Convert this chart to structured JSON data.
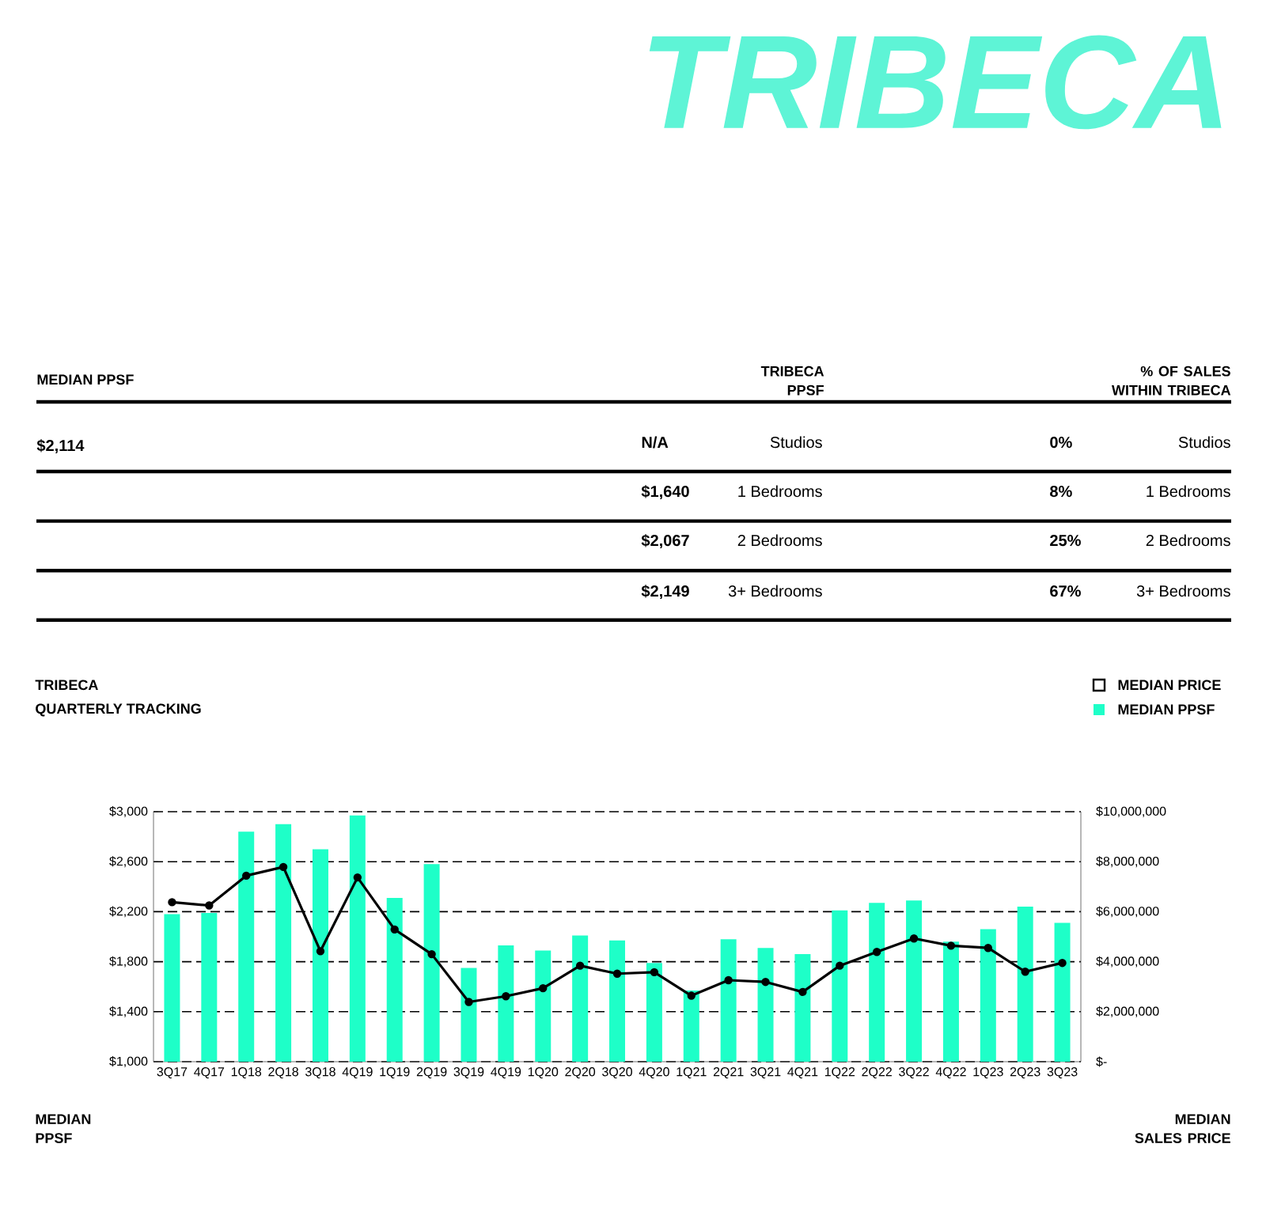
{
  "chart_data": [
    {
      "type": "other",
      "title": "TRIBECA",
      "annotations": [
        "MEDIAN PPSF",
        "TRIBECA PPSF",
        "% OF SALES WITHIN TRIBECA",
        "$2,114",
        "N/A",
        "Studios",
        "0%",
        "Studios",
        "$1,640",
        "1 Bedrooms",
        "8%",
        "1 Bedrooms",
        "$2,067",
        "2 Bedrooms",
        "25%",
        "2 Bedrooms",
        "$2,149",
        "3+ Bedrooms",
        "67%",
        "3+ Bedrooms"
      ]
    },
    {
      "type": "bar",
      "title": "TRIBECA",
      "subtitle": "QUARTERLY TRACKING",
      "ylabel": "MEDIAN PPSF",
      "y2label": "MEDIAN SALES PRICE",
      "categories": [
        "3Q17",
        "4Q17",
        "1Q18",
        "2Q18",
        "3Q18",
        "4Q19",
        "1Q19",
        "2Q19",
        "3Q19",
        "4Q19",
        "1Q20",
        "2Q20",
        "3Q20",
        "4Q20",
        "1Q21",
        "2Q21",
        "3Q21",
        "4Q21",
        "1Q22",
        "2Q22",
        "3Q22",
        "4Q22",
        "1Q23",
        "2Q23",
        "3Q23"
      ],
      "series": [
        {
          "name": "MEDIAN PRICE",
          "type": "line",
          "axis": "y2",
          "color": "#000000",
          "values": [
            6380000,
            6250000,
            7440000,
            7790000,
            4420000,
            7370000,
            5290000,
            4300000,
            2390000,
            2620000,
            2940000,
            3840000,
            3520000,
            3580000,
            2640000,
            3260000,
            3190000,
            2790000,
            3840000,
            4390000,
            4930000,
            4640000,
            4550000,
            3600000,
            3950000
          ]
        },
        {
          "name": "MEDIAN PPSF",
          "type": "bar",
          "color": "#1effc8",
          "values": [
            2180,
            2190,
            2840,
            2900,
            2700,
            2970,
            2310,
            2580,
            1750,
            1930,
            1890,
            2010,
            1970,
            1790,
            1570,
            1980,
            1910,
            1860,
            2210,
            2270,
            2290,
            1960,
            2060,
            2240,
            2110
          ]
        }
      ],
      "ylim": [
        1000,
        3000
      ],
      "yticks": [
        {
          "value": 1000,
          "label": "$1,000"
        },
        {
          "value": 1400,
          "label": "$1,400"
        },
        {
          "value": 1800,
          "label": "$1,800"
        },
        {
          "value": 2200,
          "label": "$2,200"
        },
        {
          "value": 2600,
          "label": "$2,600"
        },
        {
          "value": 3000,
          "label": "$3,000"
        }
      ],
      "y2lim": [
        0,
        10000000
      ],
      "y2ticks": [
        {
          "value": 0,
          "label": "$-"
        },
        {
          "value": 2000000,
          "label": "$2,000,000"
        },
        {
          "value": 4000000,
          "label": "$4,000,000"
        },
        {
          "value": 6000000,
          "label": "$6,000,000"
        },
        {
          "value": 8000000,
          "label": "$8,000,000"
        },
        {
          "value": 10000000,
          "label": "$10,000,000"
        }
      ],
      "grid": "y",
      "marker": "circle",
      "legend": "top right"
    }
  ]
}
